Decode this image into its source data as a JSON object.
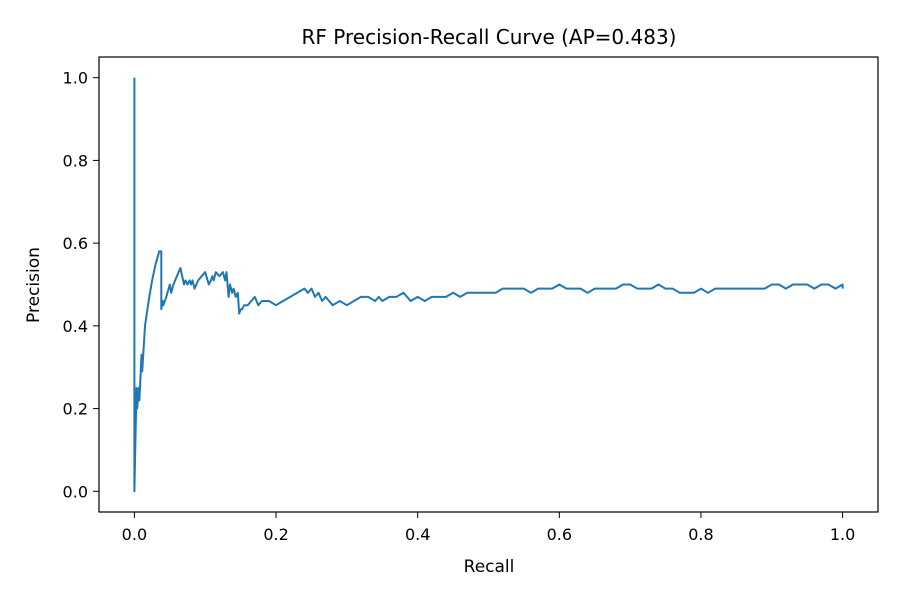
{
  "chart_data": {
    "type": "line",
    "title": "RF Precision-Recall Curve (AP=0.483)",
    "xlabel": "Recall",
    "ylabel": "Precision",
    "xlim": [
      -0.05,
      1.05
    ],
    "ylim": [
      -0.05,
      1.05
    ],
    "xticks": [
      0.0,
      0.2,
      0.4,
      0.6,
      0.8,
      1.0
    ],
    "xtick_labels": [
      "0.0",
      "0.2",
      "0.4",
      "0.6",
      "0.8",
      "1.0"
    ],
    "yticks": [
      0.0,
      0.2,
      0.4,
      0.6,
      0.8,
      1.0
    ],
    "ytick_labels": [
      "0.0",
      "0.2",
      "0.4",
      "0.6",
      "0.8",
      "1.0"
    ],
    "grid": false,
    "legend": "none",
    "series": [
      {
        "color": "#1f77b4",
        "x": [
          0.0,
          0.0,
          0.0,
          0.003,
          0.004,
          0.006,
          0.007,
          0.01,
          0.011,
          0.015,
          0.02,
          0.025,
          0.03,
          0.035,
          0.038,
          0.038,
          0.04,
          0.041,
          0.045,
          0.05,
          0.052,
          0.055,
          0.06,
          0.065,
          0.07,
          0.072,
          0.075,
          0.078,
          0.08,
          0.082,
          0.085,
          0.09,
          0.095,
          0.1,
          0.105,
          0.108,
          0.11,
          0.112,
          0.115,
          0.12,
          0.125,
          0.128,
          0.13,
          0.133,
          0.135,
          0.138,
          0.14,
          0.143,
          0.146,
          0.148,
          0.15,
          0.152,
          0.155,
          0.16,
          0.165,
          0.17,
          0.175,
          0.18,
          0.19,
          0.2,
          0.21,
          0.22,
          0.23,
          0.24,
          0.245,
          0.25,
          0.255,
          0.26,
          0.265,
          0.27,
          0.28,
          0.29,
          0.3,
          0.31,
          0.32,
          0.33,
          0.34,
          0.345,
          0.35,
          0.36,
          0.37,
          0.38,
          0.385,
          0.39,
          0.4,
          0.41,
          0.42,
          0.43,
          0.44,
          0.45,
          0.46,
          0.47,
          0.48,
          0.49,
          0.5,
          0.51,
          0.52,
          0.53,
          0.54,
          0.55,
          0.56,
          0.57,
          0.58,
          0.59,
          0.6,
          0.61,
          0.615,
          0.62,
          0.63,
          0.64,
          0.65,
          0.66,
          0.67,
          0.68,
          0.69,
          0.7,
          0.71,
          0.72,
          0.73,
          0.74,
          0.75,
          0.76,
          0.77,
          0.78,
          0.79,
          0.8,
          0.81,
          0.82,
          0.83,
          0.84,
          0.85,
          0.86,
          0.87,
          0.88,
          0.89,
          0.9,
          0.91,
          0.92,
          0.93,
          0.94,
          0.95,
          0.96,
          0.97,
          0.98,
          0.99,
          1.0,
          1.0
        ],
        "y": [
          1.0,
          0.0,
          0.0,
          0.25,
          0.2,
          0.25,
          0.22,
          0.33,
          0.29,
          0.4,
          0.46,
          0.51,
          0.55,
          0.58,
          0.58,
          0.44,
          0.46,
          0.45,
          0.47,
          0.5,
          0.48,
          0.5,
          0.52,
          0.54,
          0.5,
          0.51,
          0.5,
          0.51,
          0.5,
          0.51,
          0.49,
          0.51,
          0.52,
          0.53,
          0.5,
          0.51,
          0.52,
          0.51,
          0.53,
          0.52,
          0.53,
          0.51,
          0.53,
          0.47,
          0.5,
          0.48,
          0.49,
          0.47,
          0.48,
          0.43,
          0.44,
          0.44,
          0.45,
          0.45,
          0.46,
          0.47,
          0.45,
          0.46,
          0.46,
          0.45,
          0.46,
          0.47,
          0.48,
          0.49,
          0.48,
          0.49,
          0.47,
          0.48,
          0.46,
          0.47,
          0.45,
          0.46,
          0.45,
          0.46,
          0.47,
          0.47,
          0.46,
          0.47,
          0.46,
          0.47,
          0.47,
          0.48,
          0.47,
          0.46,
          0.47,
          0.46,
          0.47,
          0.47,
          0.47,
          0.48,
          0.47,
          0.48,
          0.48,
          0.48,
          0.48,
          0.48,
          0.49,
          0.49,
          0.49,
          0.49,
          0.48,
          0.49,
          0.49,
          0.49,
          0.5,
          0.49,
          0.49,
          0.49,
          0.49,
          0.48,
          0.49,
          0.49,
          0.49,
          0.49,
          0.5,
          0.5,
          0.49,
          0.49,
          0.49,
          0.5,
          0.49,
          0.49,
          0.48,
          0.48,
          0.48,
          0.49,
          0.48,
          0.49,
          0.49,
          0.49,
          0.49,
          0.49,
          0.49,
          0.49,
          0.49,
          0.5,
          0.5,
          0.49,
          0.5,
          0.5,
          0.5,
          0.49,
          0.5,
          0.5,
          0.49,
          0.5,
          0.49
        ]
      }
    ]
  }
}
